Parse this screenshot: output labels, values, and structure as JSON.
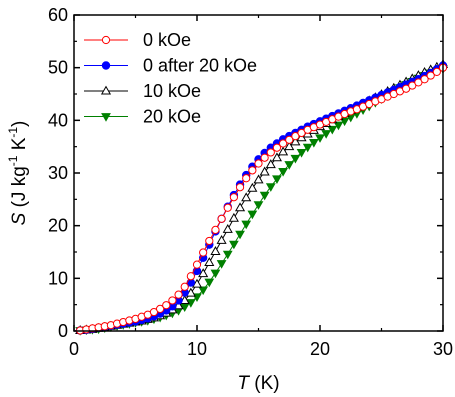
{
  "chart_data": {
    "type": "line",
    "xlabel": {
      "italic": "T",
      "rest": " (K)"
    },
    "ylabel": {
      "italic": "S",
      "base": " (J kg",
      "exp1": "-1",
      "mid": " K",
      "exp2": "-1",
      "end": ")"
    },
    "xlim": [
      0,
      30
    ],
    "ylim": [
      0,
      60
    ],
    "xticks": [
      0,
      10,
      20,
      30
    ],
    "yticks": [
      0,
      10,
      20,
      30,
      40,
      50,
      60
    ],
    "legend_position": "top-left",
    "series": [
      {
        "name": "0 kOe",
        "color": "#ff0000",
        "marker": "circle-open",
        "x": [
          0.5,
          1,
          1.5,
          2,
          2.5,
          3,
          3.5,
          4,
          4.5,
          5,
          5.5,
          6,
          6.5,
          7,
          7.5,
          8,
          8.5,
          9,
          9.5,
          10,
          10.5,
          11,
          11.5,
          12,
          12.5,
          13,
          13.5,
          14,
          14.5,
          15,
          15.5,
          16,
          16.5,
          17,
          17.5,
          18,
          18.5,
          19,
          19.5,
          20,
          20.5,
          21,
          21.5,
          22,
          22.5,
          23,
          23.5,
          24,
          24.5,
          25,
          25.5,
          26,
          26.5,
          27,
          27.5,
          28,
          28.5,
          29,
          29.5,
          30
        ],
        "y": [
          0.1,
          0.3,
          0.5,
          0.7,
          0.9,
          1.1,
          1.4,
          1.7,
          2.0,
          2.3,
          2.7,
          3.1,
          3.6,
          4.2,
          4.9,
          5.8,
          6.9,
          8.4,
          10.4,
          12.6,
          14.9,
          17.1,
          19.2,
          21.3,
          23.4,
          25.4,
          27.3,
          29.0,
          30.5,
          31.8,
          32.9,
          33.9,
          34.8,
          35.6,
          36.3,
          37.0,
          37.6,
          38.2,
          38.7,
          39.2,
          39.7,
          40.2,
          40.7,
          41.2,
          41.7,
          42.1,
          42.6,
          43.1,
          43.6,
          44.0,
          44.5,
          45.0,
          45.5,
          46.0,
          46.6,
          47.2,
          47.8,
          48.5,
          49.2,
          50.0
        ]
      },
      {
        "name": "0 after 20 kOe",
        "color": "#0000ff",
        "marker": "circle-filled",
        "x": [
          0.5,
          1,
          1.5,
          2,
          2.5,
          3,
          3.5,
          4,
          4.5,
          5,
          5.5,
          6,
          6.5,
          7,
          7.5,
          8,
          8.5,
          9,
          9.5,
          10,
          10.5,
          11,
          11.5,
          12,
          12.5,
          13,
          13.5,
          14,
          14.5,
          15,
          15.5,
          16,
          16.5,
          17,
          17.5,
          18,
          18.5,
          19,
          19.5,
          20,
          20.5,
          21,
          21.5,
          22,
          22.5,
          23,
          23.5,
          24,
          24.5,
          25,
          25.5,
          26,
          26.5,
          27,
          27.5,
          28,
          28.5,
          29,
          29.5,
          30
        ],
        "y": [
          0.1,
          0.2,
          0.4,
          0.6,
          0.8,
          1.0,
          1.2,
          1.4,
          1.6,
          1.8,
          2.1,
          2.4,
          2.8,
          3.3,
          3.9,
          4.7,
          5.8,
          7.3,
          9.2,
          11.4,
          13.9,
          16.4,
          18.9,
          21.3,
          23.6,
          25.8,
          27.8,
          29.6,
          31.2,
          32.6,
          33.8,
          34.8,
          35.6,
          36.4,
          37.0,
          37.6,
          38.2,
          38.8,
          39.3,
          39.8,
          40.3,
          40.8,
          41.3,
          41.8,
          42.3,
          42.8,
          43.3,
          43.8,
          44.3,
          44.8,
          45.3,
          45.8,
          46.3,
          46.8,
          47.3,
          47.8,
          48.4,
          49.0,
          49.7,
          50.4
        ]
      },
      {
        "name": "10 kOe",
        "color": "#000000",
        "marker": "triangle-open",
        "x": [
          0.5,
          1,
          1.5,
          2,
          2.5,
          3,
          3.5,
          4,
          4.5,
          5,
          5.5,
          6,
          6.5,
          7,
          7.5,
          8,
          8.5,
          9,
          9.5,
          10,
          10.5,
          11,
          11.5,
          12,
          12.5,
          13,
          13.5,
          14,
          14.5,
          15,
          15.5,
          16,
          16.5,
          17,
          17.5,
          18,
          18.5,
          19,
          19.5,
          20,
          20.5,
          21,
          21.5,
          22,
          22.5,
          23,
          23.5,
          24,
          24.5,
          25,
          25.5,
          26,
          26.5,
          27,
          27.5,
          28,
          28.5,
          29,
          29.5,
          30
        ],
        "y": [
          0.1,
          0.2,
          0.3,
          0.5,
          0.7,
          0.9,
          1.1,
          1.3,
          1.5,
          1.7,
          1.9,
          2.2,
          2.5,
          2.9,
          3.4,
          4.0,
          4.8,
          5.8,
          7.2,
          8.9,
          10.9,
          13.0,
          15.1,
          17.2,
          19.3,
          21.4,
          23.4,
          25.3,
          27.1,
          28.7,
          30.2,
          31.6,
          32.9,
          34.0,
          35.0,
          35.9,
          36.7,
          37.4,
          38.1,
          38.8,
          39.4,
          40.1,
          40.7,
          41.3,
          41.9,
          42.5,
          43.1,
          43.7,
          44.3,
          44.9,
          45.5,
          46.1,
          46.7,
          47.3,
          47.9,
          48.5,
          49.1,
          49.6,
          50.1,
          50.6
        ]
      },
      {
        "name": "20 kOe",
        "color": "#008000",
        "marker": "triangle-down-filled",
        "x": [
          0.5,
          1,
          1.5,
          2,
          2.5,
          3,
          3.5,
          4,
          4.5,
          5,
          5.5,
          6,
          6.5,
          7,
          7.5,
          8,
          8.5,
          9,
          9.5,
          10,
          10.5,
          11,
          11.5,
          12,
          12.5,
          13,
          13.5,
          14,
          14.5,
          15,
          15.5,
          16,
          16.5,
          17,
          17.5,
          18,
          18.5,
          19,
          19.5,
          20,
          20.5,
          21,
          21.5,
          22,
          22.5,
          23,
          23.5,
          24,
          24.5,
          25,
          25.5,
          26,
          26.5,
          27,
          27.5,
          28,
          28.5,
          29,
          29.5,
          30
        ],
        "y": [
          0.1,
          0.2,
          0.3,
          0.4,
          0.6,
          0.8,
          1.0,
          1.2,
          1.4,
          1.6,
          1.8,
          2.0,
          2.3,
          2.6,
          3.0,
          3.4,
          3.9,
          4.6,
          5.4,
          6.5,
          7.8,
          9.3,
          11.0,
          12.8,
          14.6,
          16.5,
          18.4,
          20.3,
          22.2,
          24.0,
          25.8,
          27.4,
          28.9,
          30.3,
          31.6,
          32.8,
          33.9,
          34.9,
          35.8,
          36.7,
          37.5,
          38.3,
          39.1,
          39.9,
          40.6,
          41.3,
          42.0,
          42.7,
          43.4,
          44.1,
          44.8,
          45.5,
          46.2,
          46.8,
          47.4,
          48.0,
          48.5,
          49.0,
          49.4,
          49.8
        ]
      }
    ]
  }
}
